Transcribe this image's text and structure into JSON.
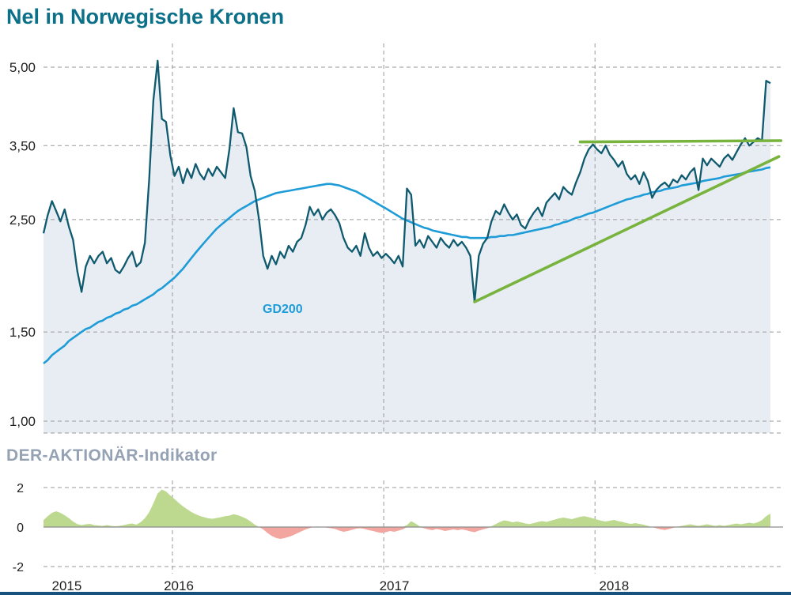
{
  "page": {
    "title": "Nel in Norwegische Kronen",
    "indicator_title": "DER-AKTIONÄR-Indikator"
  },
  "colors": {
    "title": "#0b7088",
    "price_line": "#0f5a6e",
    "area_fill": "#e8edf4",
    "gd200": "#1e9cd8",
    "trend_green": "#78b43d",
    "indicator_pos": "#bdd98f",
    "indicator_neg": "#f3a69f",
    "indicator_title": "#94a2b4",
    "bottom_bar": "#17517e"
  },
  "chart_data": [
    {
      "type": "line",
      "title": "Nel in Norwegische Kronen",
      "y_scale": "log",
      "ylim": [
        0.95,
        5.6
      ],
      "grid": true,
      "x_start": 2015.39,
      "x_step": 0.02,
      "x_gridline_years": [
        2016,
        2017,
        2018
      ],
      "x_labels": [
        {
          "label": "2015",
          "year": 2015.5
        },
        {
          "label": "2016",
          "year": 2016.03
        },
        {
          "label": "2017",
          "year": 2017.05
        },
        {
          "label": "2018",
          "year": 2018.09
        }
      ],
      "y_ticks": [
        {
          "value": 5.0,
          "label": "5,00"
        },
        {
          "value": 3.5,
          "label": "3,50"
        },
        {
          "value": 2.5,
          "label": "2,50"
        },
        {
          "value": 1.5,
          "label": "1,50"
        },
        {
          "value": 1.0,
          "label": "1,00"
        }
      ],
      "gd200_label": "GD200",
      "series": [
        {
          "name": "Nel",
          "role": "price",
          "values": [
            2.35,
            2.55,
            2.72,
            2.6,
            2.48,
            2.62,
            2.42,
            2.28,
            1.98,
            1.8,
            2.02,
            2.12,
            2.05,
            2.12,
            2.16,
            2.05,
            2.1,
            1.99,
            1.96,
            2.02,
            2.1,
            2.16,
            2.02,
            2.06,
            2.25,
            3.0,
            4.3,
            5.15,
            3.95,
            3.9,
            3.35,
            3.05,
            3.18,
            2.95,
            3.15,
            3.02,
            3.22,
            3.08,
            3.0,
            3.15,
            3.05,
            3.18,
            3.1,
            3.02,
            3.45,
            4.15,
            3.72,
            3.7,
            3.48,
            3.05,
            2.85,
            2.5,
            2.12,
            2.0,
            2.12,
            2.04,
            2.16,
            2.1,
            2.22,
            2.16,
            2.26,
            2.3,
            2.44,
            2.65,
            2.55,
            2.62,
            2.5,
            2.58,
            2.62,
            2.55,
            2.46,
            2.3,
            2.2,
            2.16,
            2.22,
            2.12,
            2.35,
            2.2,
            2.12,
            2.16,
            2.1,
            2.14,
            2.1,
            2.05,
            2.12,
            2.02,
            2.88,
            2.8,
            2.22,
            2.28,
            2.2,
            2.32,
            2.26,
            2.2,
            2.3,
            2.24,
            2.2,
            2.28,
            2.22,
            2.26,
            2.2,
            2.12,
            1.72,
            2.12,
            2.24,
            2.3,
            2.48,
            2.6,
            2.56,
            2.68,
            2.58,
            2.5,
            2.56,
            2.44,
            2.4,
            2.5,
            2.58,
            2.64,
            2.54,
            2.7,
            2.76,
            2.82,
            2.74,
            2.9,
            2.84,
            2.8,
            2.96,
            3.1,
            3.3,
            3.44,
            3.52,
            3.44,
            3.38,
            3.5,
            3.36,
            3.28,
            3.18,
            3.26,
            3.08,
            3.0,
            3.06,
            2.94,
            3.1,
            2.98,
            2.76,
            2.86,
            2.92,
            2.96,
            2.9,
            3.0,
            2.96,
            3.06,
            3.0,
            3.1,
            3.16,
            2.86,
            3.3,
            3.2,
            3.3,
            3.24,
            3.18,
            3.3,
            3.36,
            3.28,
            3.4,
            3.52,
            3.62,
            3.5,
            3.56,
            3.62,
            3.58,
            4.7,
            4.65
          ]
        },
        {
          "name": "GD200",
          "role": "gd200",
          "values": [
            1.3,
            1.32,
            1.35,
            1.37,
            1.39,
            1.41,
            1.44,
            1.46,
            1.48,
            1.5,
            1.52,
            1.53,
            1.55,
            1.57,
            1.58,
            1.6,
            1.61,
            1.63,
            1.64,
            1.66,
            1.67,
            1.69,
            1.7,
            1.72,
            1.74,
            1.76,
            1.78,
            1.81,
            1.83,
            1.86,
            1.89,
            1.92,
            1.96,
            2.0,
            2.05,
            2.1,
            2.15,
            2.2,
            2.25,
            2.3,
            2.35,
            2.4,
            2.44,
            2.48,
            2.52,
            2.56,
            2.6,
            2.63,
            2.66,
            2.69,
            2.72,
            2.74,
            2.76,
            2.78,
            2.8,
            2.82,
            2.83,
            2.84,
            2.85,
            2.86,
            2.87,
            2.88,
            2.89,
            2.9,
            2.91,
            2.92,
            2.93,
            2.94,
            2.94,
            2.93,
            2.92,
            2.9,
            2.88,
            2.86,
            2.84,
            2.81,
            2.78,
            2.75,
            2.72,
            2.69,
            2.66,
            2.63,
            2.6,
            2.57,
            2.54,
            2.51,
            2.49,
            2.47,
            2.45,
            2.43,
            2.41,
            2.4,
            2.38,
            2.37,
            2.36,
            2.35,
            2.34,
            2.33,
            2.32,
            2.31,
            2.31,
            2.3,
            2.3,
            2.3,
            2.3,
            2.3,
            2.31,
            2.31,
            2.32,
            2.32,
            2.33,
            2.33,
            2.34,
            2.35,
            2.36,
            2.37,
            2.38,
            2.39,
            2.4,
            2.41,
            2.42,
            2.44,
            2.45,
            2.47,
            2.48,
            2.5,
            2.52,
            2.53,
            2.55,
            2.57,
            2.58,
            2.6,
            2.62,
            2.64,
            2.66,
            2.68,
            2.7,
            2.72,
            2.74,
            2.75,
            2.77,
            2.78,
            2.8,
            2.81,
            2.83,
            2.84,
            2.85,
            2.87,
            2.88,
            2.89,
            2.9,
            2.92,
            2.93,
            2.94,
            2.95,
            2.96,
            2.98,
            2.99,
            3.0,
            3.01,
            3.02,
            3.04,
            3.05,
            3.06,
            3.07,
            3.08,
            3.1,
            3.11,
            3.12,
            3.13,
            3.14,
            3.16,
            3.17
          ]
        }
      ],
      "trend_lines": [
        {
          "x1": 2017.43,
          "y1": 1.72,
          "x2": 2018.87,
          "y2": 3.33
        },
        {
          "x1": 2017.93,
          "y1": 3.56,
          "x2": 2018.88,
          "y2": 3.58
        }
      ]
    },
    {
      "type": "area",
      "title": "DER-AKTIONÄR-Indikator",
      "ylim": [
        -2,
        2
      ],
      "grid": true,
      "x_start": 2015.39,
      "x_step": 0.02,
      "y_ticks": [
        {
          "value": 2,
          "label": "2"
        },
        {
          "value": 0,
          "label": "0"
        },
        {
          "value": -2,
          "label": "-2"
        }
      ],
      "values": [
        0.35,
        0.55,
        0.72,
        0.8,
        0.72,
        0.6,
        0.45,
        0.28,
        0.15,
        0.1,
        0.14,
        0.16,
        0.1,
        0.08,
        0.06,
        0.1,
        0.06,
        0.04,
        0.06,
        0.1,
        0.15,
        0.18,
        0.12,
        0.25,
        0.45,
        0.75,
        1.2,
        1.7,
        1.9,
        1.8,
        1.6,
        1.42,
        1.22,
        1.05,
        0.9,
        0.76,
        0.65,
        0.56,
        0.5,
        0.44,
        0.42,
        0.46,
        0.5,
        0.55,
        0.58,
        0.65,
        0.6,
        0.52,
        0.42,
        0.28,
        0.12,
        0.0,
        -0.12,
        -0.3,
        -0.45,
        -0.55,
        -0.6,
        -0.56,
        -0.5,
        -0.42,
        -0.32,
        -0.22,
        -0.12,
        -0.05,
        0.0,
        0.03,
        0.0,
        -0.03,
        -0.06,
        -0.1,
        -0.18,
        -0.24,
        -0.2,
        -0.14,
        -0.08,
        -0.06,
        -0.1,
        -0.16,
        -0.2,
        -0.26,
        -0.3,
        -0.26,
        -0.2,
        -0.24,
        -0.18,
        -0.12,
        0.1,
        0.3,
        0.18,
        0.04,
        -0.06,
        -0.12,
        -0.16,
        -0.1,
        -0.14,
        -0.2,
        -0.16,
        -0.12,
        -0.16,
        -0.12,
        -0.16,
        -0.22,
        -0.26,
        -0.18,
        -0.12,
        -0.06,
        0.04,
        0.15,
        0.26,
        0.34,
        0.3,
        0.24,
        0.28,
        0.24,
        0.18,
        0.15,
        0.2,
        0.26,
        0.3,
        0.26,
        0.32,
        0.38,
        0.44,
        0.48,
        0.44,
        0.4,
        0.46,
        0.52,
        0.55,
        0.5,
        0.44,
        0.38,
        0.32,
        0.28,
        0.32,
        0.36,
        0.3,
        0.26,
        0.2,
        0.16,
        0.2,
        0.16,
        0.12,
        0.06,
        0.0,
        -0.06,
        -0.12,
        -0.15,
        -0.1,
        -0.04,
        0.02,
        0.06,
        0.1,
        0.14,
        0.1,
        0.06,
        0.1,
        0.14,
        0.1,
        0.06,
        0.1,
        0.06,
        0.1,
        0.14,
        0.18,
        0.14,
        0.18,
        0.22,
        0.18,
        0.24,
        0.35,
        0.55,
        0.68
      ]
    }
  ]
}
